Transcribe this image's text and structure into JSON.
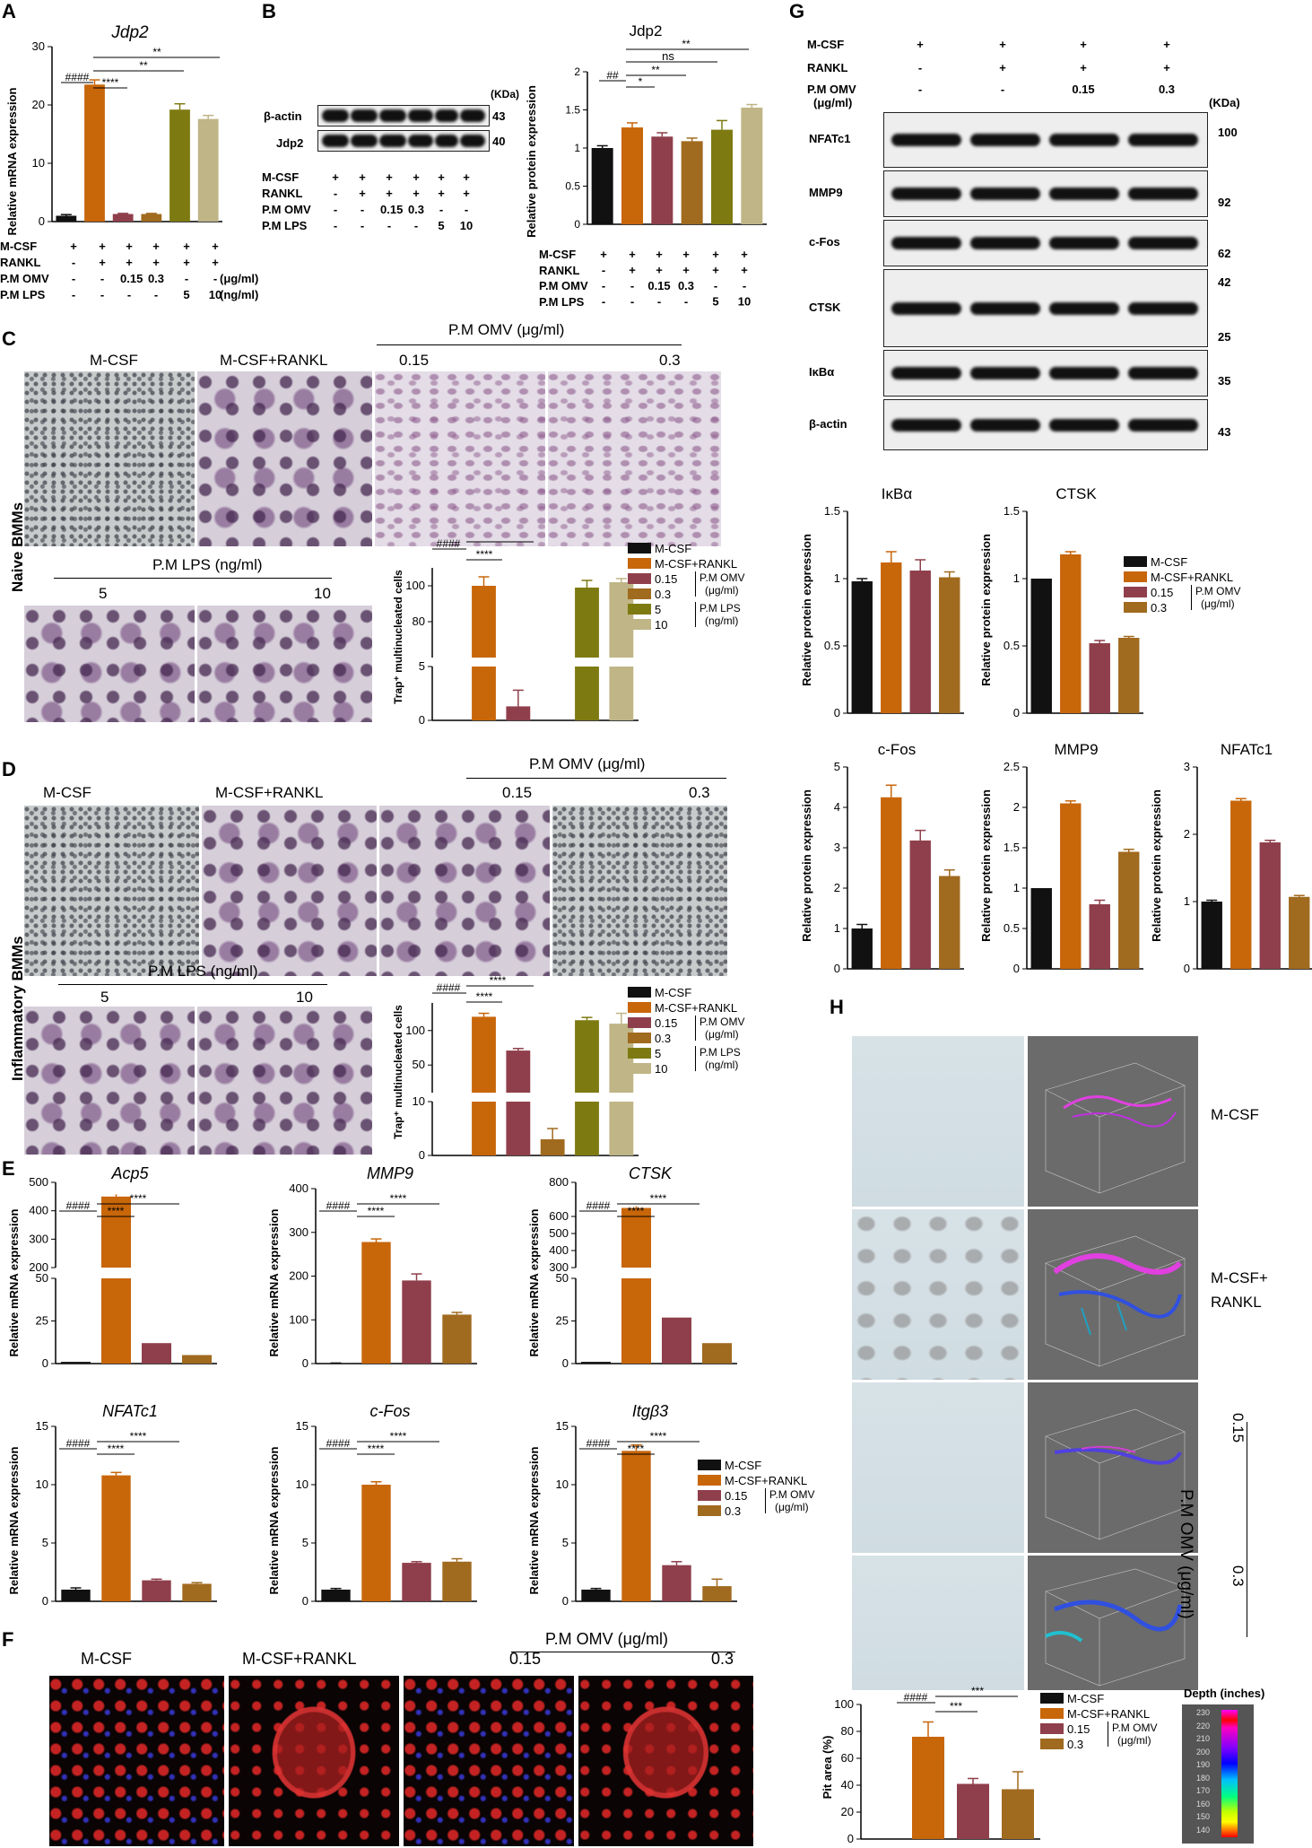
{
  "panel_labels": [
    "A",
    "B",
    "C",
    "D",
    "E",
    "F",
    "G",
    "H"
  ],
  "colors": {
    "black": "#111111",
    "orange": "#c8660a",
    "maroon": "#8f3f4b",
    "brown": "#a06a1f",
    "olive": "#7e7a12",
    "khaki": "#bfb586"
  },
  "treat_rows": {
    "mcsf": "M-CSF",
    "rankl": "RANKL",
    "omv": "P.M OMV",
    "lps": "P.M LPS",
    "omv_unit": "(μg/ml)",
    "lps_unit": "(ng/ml)",
    "plus": "+",
    "minus": "-",
    "d015": "0.15",
    "d03": "0.3",
    "d5": "5",
    "d10": "10"
  },
  "A": {
    "title": "Jdp2",
    "ylabel": "Relative mRNA expression",
    "sig": [
      "####",
      "****",
      "**",
      "**"
    ]
  },
  "B": {
    "kda": "(KDa)",
    "blot_labels": [
      "β-actin",
      "Jdp2"
    ],
    "kda_values": [
      "43",
      "40"
    ],
    "title": "Jdp2",
    "ylabel": "Relative protein expression",
    "sig": [
      "##",
      "*",
      "**",
      "ns",
      "**"
    ]
  },
  "C": {
    "headers": [
      "M-CSF",
      "M-CSF+RANKL",
      "0.15",
      "0.3"
    ],
    "omv_title": "P.M OMV (μg/ml)",
    "lps_title": "P.M LPS (ng/ml)",
    "lps_doses": [
      "5",
      "10"
    ],
    "side": "Naive BMMs",
    "ylabel": "Trap⁺ multinucleated cells",
    "sig": [
      "####",
      "****",
      "****"
    ]
  },
  "D": {
    "headers": [
      "M-CSF",
      "M-CSF+RANKL",
      "0.15",
      "0.3"
    ],
    "omv_title": "P.M OMV (μg/ml)",
    "lps_title": "P.M LPS (ng/ml)",
    "lps_doses": [
      "5",
      "10"
    ],
    "side": "Inflammatory BMMs",
    "ylabel": "Trap⁺ multinucleated cells",
    "sig": [
      "####",
      "****",
      "****"
    ]
  },
  "legend6": {
    "items": [
      "M-CSF",
      "M-CSF+RANKL",
      "0.15",
      "0.3",
      "5",
      "10"
    ],
    "omv": "P.M OMV",
    "omv_unit": "(μg/ml)",
    "lps": "P.M LPS",
    "lps_unit": "(ng/ml)"
  },
  "legend4": {
    "items": [
      "M-CSF",
      "M-CSF+RANKL",
      "0.15",
      "0.3"
    ],
    "omv": "P.M OMV",
    "omv_unit": "(μg/ml)"
  },
  "E": {
    "genes": [
      "Acp5",
      "MMP9",
      "CTSK",
      "NFATc1",
      "c-Fos",
      "Itgβ3"
    ],
    "ylabel": "Relative mRNA expression",
    "sig": [
      "####",
      "****",
      "****"
    ]
  },
  "F": {
    "headers": [
      "M-CSF",
      "M-CSF+RANKL",
      "0.15",
      "0.3"
    ],
    "omv_title": "P.M OMV (μg/ml)"
  },
  "G": {
    "cols": {
      "mcsf": [
        "+",
        "+",
        "+",
        "+"
      ],
      "rankl": [
        "-",
        "+",
        "+",
        "+"
      ],
      "omv": [
        "-",
        "-",
        "0.15",
        "0.3"
      ]
    },
    "row_labels": [
      "M-CSF",
      "RANKL",
      "P.M OMV",
      "(μg/ml)"
    ],
    "kda": "(KDa)",
    "blots": [
      "NFATc1",
      "MMP9",
      "c-Fos",
      "CTSK",
      "IκBα",
      "β-actin"
    ],
    "kda_values": [
      "100",
      "92",
      "62",
      "42",
      "25",
      "35",
      "43"
    ],
    "charts": [
      "IκBα",
      "CTSK",
      "c-Fos",
      "MMP9",
      "NFATc1"
    ],
    "ylabel": "Relative protein expression"
  },
  "H": {
    "labels": [
      "M-CSF",
      "M-CSF+",
      "RANKL",
      "0.15",
      "0.3"
    ],
    "omv_title": "P.M OMV (μg/ml)",
    "ylabel": "Pit area (%)",
    "depth_title": "Depth (inches)",
    "depth_ticks": [
      "230",
      "220",
      "210",
      "200",
      "190",
      "180",
      "170",
      "160",
      "150",
      "140"
    ],
    "sig": [
      "####",
      "***",
      "***"
    ]
  },
  "chart_data": [
    {
      "id": "A",
      "type": "bar",
      "title": "Jdp2",
      "ylabel": "Relative mRNA expression",
      "ylim": [
        0,
        30
      ],
      "yticks": [
        0,
        10,
        20,
        30
      ],
      "values": [
        1.0,
        23.5,
        1.3,
        1.3,
        19.2,
        17.6
      ],
      "errors": [
        0.2,
        0.8,
        0.1,
        0.1,
        1.0,
        0.6
      ]
    },
    {
      "id": "B",
      "type": "bar",
      "title": "Jdp2",
      "ylabel": "Relative protein expression",
      "ylim": [
        0,
        2.0
      ],
      "yticks": [
        0.0,
        0.5,
        1.0,
        1.5,
        2.0
      ],
      "values": [
        1.0,
        1.27,
        1.15,
        1.09,
        1.24,
        1.53
      ],
      "errors": [
        0.03,
        0.06,
        0.05,
        0.04,
        0.12,
        0.04
      ]
    },
    {
      "id": "C",
      "type": "bar",
      "ylabel": "Trap⁺ multinucleated cells",
      "values": [
        0,
        100,
        1.3,
        0,
        99,
        102
      ],
      "errors": [
        0,
        5,
        1.5,
        0,
        4,
        2
      ]
    },
    {
      "id": "D",
      "type": "bar",
      "ylabel": "Trap⁺ multinucleated cells",
      "values": [
        0,
        120,
        71,
        3,
        115,
        110
      ],
      "errors": [
        0,
        5,
        3,
        2,
        4,
        15
      ]
    },
    {
      "id": "E-Acp5",
      "type": "bar",
      "title": "Acp5",
      "values": [
        1,
        450,
        12,
        5
      ],
      "errors": [
        0.2,
        8,
        1,
        0.5
      ]
    },
    {
      "id": "E-MMP9",
      "type": "bar",
      "title": "MMP9",
      "ylim": [
        0,
        400
      ],
      "yticks": [
        0,
        100,
        200,
        300,
        400
      ],
      "values": [
        1,
        278,
        190,
        112
      ],
      "errors": [
        0.2,
        7,
        15,
        5
      ]
    },
    {
      "id": "E-CTSK",
      "type": "bar",
      "title": "CTSK",
      "values": [
        1,
        650,
        27,
        12
      ],
      "errors": [
        0.2,
        10,
        1,
        0.5
      ]
    },
    {
      "id": "E-NFATc1",
      "type": "bar",
      "title": "NFATc1",
      "ylim": [
        0,
        15
      ],
      "yticks": [
        0,
        5,
        10,
        15
      ],
      "values": [
        1.0,
        10.8,
        1.8,
        1.5
      ],
      "errors": [
        0.15,
        0.25,
        0.1,
        0.1
      ]
    },
    {
      "id": "E-cFos",
      "type": "bar",
      "title": "c-Fos",
      "ylim": [
        0,
        15
      ],
      "yticks": [
        0,
        5,
        10,
        15
      ],
      "values": [
        1.0,
        10.0,
        3.3,
        3.4
      ],
      "errors": [
        0.1,
        0.25,
        0.1,
        0.25
      ]
    },
    {
      "id": "E-Itgb3",
      "type": "bar",
      "title": "Itgβ3",
      "ylim": [
        0,
        15
      ],
      "yticks": [
        0,
        5,
        10,
        15
      ],
      "values": [
        1.0,
        12.9,
        3.1,
        1.3
      ],
      "errors": [
        0.1,
        0.5,
        0.3,
        0.6
      ]
    },
    {
      "id": "G-IkBa",
      "type": "bar",
      "title": "IκBα",
      "ylim": [
        0,
        1.5
      ],
      "yticks": [
        0.0,
        0.5,
        1.0,
        1.5
      ],
      "values": [
        0.98,
        1.12,
        1.06,
        1.01
      ],
      "errors": [
        0.02,
        0.08,
        0.08,
        0.04
      ]
    },
    {
      "id": "G-CTSK",
      "type": "bar",
      "title": "CTSK",
      "ylim": [
        0,
        1.5
      ],
      "yticks": [
        0.0,
        0.5,
        1.0,
        1.5
      ],
      "values": [
        1.0,
        1.18,
        0.52,
        0.56
      ],
      "errors": [
        0,
        0.02,
        0.02,
        0.01
      ]
    },
    {
      "id": "G-cFos",
      "type": "bar",
      "title": "c-Fos",
      "ylim": [
        0,
        5
      ],
      "yticks": [
        0,
        1,
        2,
        3,
        4,
        5
      ],
      "values": [
        1.0,
        4.25,
        3.18,
        2.3
      ],
      "errors": [
        0.1,
        0.3,
        0.25,
        0.15
      ]
    },
    {
      "id": "G-MMP9",
      "type": "bar",
      "title": "MMP9",
      "ylim": [
        0,
        2.5
      ],
      "yticks": [
        0.0,
        0.5,
        1.0,
        1.5,
        2.0,
        2.5
      ],
      "values": [
        1.0,
        2.05,
        0.8,
        1.45
      ],
      "errors": [
        0,
        0.03,
        0.05,
        0.03
      ]
    },
    {
      "id": "G-NFATc1",
      "type": "bar",
      "title": "NFATc1",
      "ylim": [
        0,
        3
      ],
      "yticks": [
        0,
        1,
        2,
        3
      ],
      "values": [
        1.0,
        2.5,
        1.88,
        1.07
      ],
      "errors": [
        0.02,
        0.03,
        0.03,
        0.02
      ]
    },
    {
      "id": "H",
      "type": "bar",
      "ylabel": "Pit area (%)",
      "ylim": [
        0,
        100
      ],
      "yticks": [
        0,
        20,
        40,
        60,
        80,
        100
      ],
      "values": [
        0,
        76,
        41,
        37
      ],
      "errors": [
        0,
        11,
        4,
        13
      ]
    }
  ]
}
